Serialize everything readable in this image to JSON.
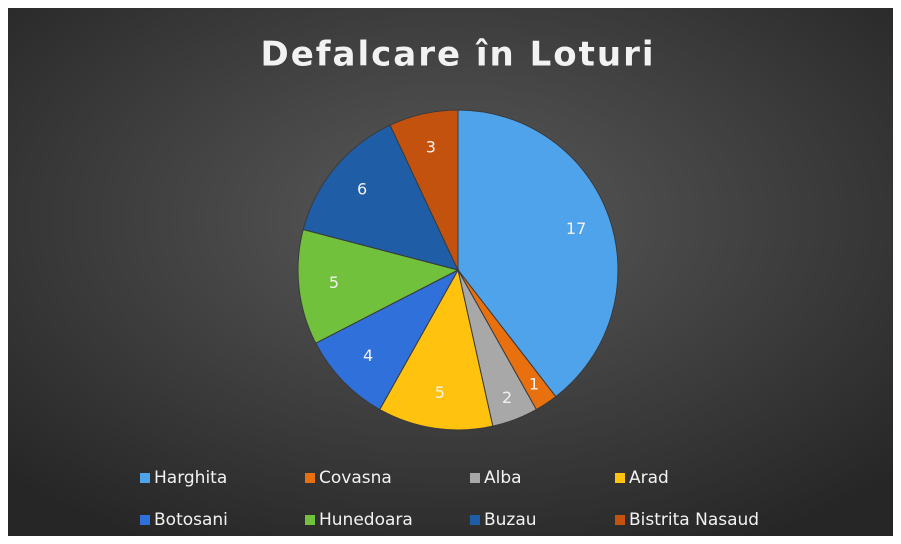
{
  "chart_data": {
    "type": "pie",
    "title": "Defalcare în Loturi",
    "categories": [
      "Harghita",
      "Covasna",
      "Alba",
      "Arad",
      "Botosani",
      "Hunedoara",
      "Buzau",
      "Bistrita Nasaud"
    ],
    "values": [
      17,
      1,
      2,
      5,
      4,
      5,
      6,
      3
    ],
    "colors": [
      "#4fa3ea",
      "#e8700f",
      "#a8a8a8",
      "#ffc20e",
      "#3070da",
      "#72c13c",
      "#1f5ea6",
      "#c4520f"
    ],
    "legend": "bottom"
  }
}
